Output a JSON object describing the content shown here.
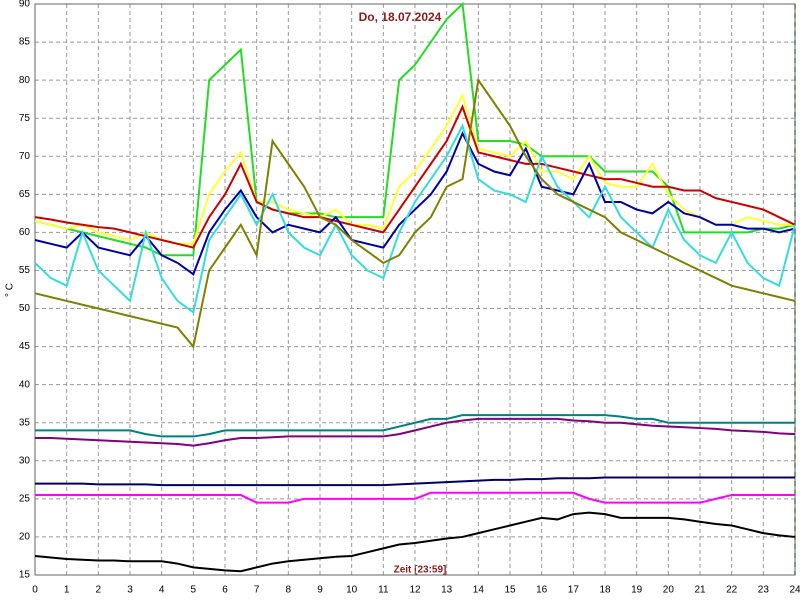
{
  "chart_data": {
    "type": "line",
    "title": "Do, 18.07.2024",
    "x_label": "Zeit [23:59]",
    "y_label": "° C",
    "x": [
      0,
      0.5,
      1,
      1.5,
      2,
      2.5,
      3,
      3.5,
      4,
      4.5,
      5,
      5.5,
      6,
      6.5,
      7,
      7.5,
      8,
      8.5,
      9,
      9.5,
      10,
      10.5,
      11,
      11.5,
      12,
      12.5,
      13,
      13.5,
      14,
      14.5,
      15,
      15.5,
      16,
      16.5,
      17,
      17.5,
      18,
      18.5,
      19,
      19.5,
      20,
      20.5,
      21,
      21.5,
      22,
      22.5,
      23,
      23.5,
      24
    ],
    "xlim": [
      0,
      24
    ],
    "xticks": [
      0,
      1,
      2,
      3,
      4,
      5,
      6,
      7,
      8,
      9,
      10,
      11,
      12,
      13,
      14,
      15,
      16,
      17,
      18,
      19,
      20,
      21,
      22,
      23,
      24
    ],
    "ylim": [
      15,
      90
    ],
    "yticks": [
      15,
      20,
      25,
      30,
      35,
      40,
      45,
      50,
      55,
      60,
      65,
      70,
      75,
      80,
      85,
      90
    ],
    "grid": true,
    "series": [
      {
        "color": "#22dd22",
        "values": [
          61.5,
          61,
          60.5,
          60,
          59.5,
          59,
          58.5,
          58,
          57,
          57,
          57,
          80,
          82,
          84,
          64,
          63,
          62.5,
          62.5,
          62.5,
          62,
          62,
          62,
          62,
          80,
          82,
          85,
          88,
          90,
          72,
          72,
          72,
          71.5,
          70,
          70,
          70,
          70,
          68,
          68,
          68,
          68,
          66,
          60,
          60,
          60,
          60,
          60,
          60.5,
          60.5,
          61
        ]
      },
      {
        "color": "#ffff33",
        "values": [
          61.5,
          61,
          60.5,
          61,
          60,
          59.5,
          59,
          60,
          59,
          58.5,
          58.5,
          65,
          68,
          70.5,
          64,
          64,
          63,
          62.5,
          62,
          63,
          61,
          61,
          60.5,
          66,
          68,
          71,
          74,
          78,
          71,
          70.5,
          70,
          72,
          68,
          68,
          67,
          70,
          66.5,
          66,
          66,
          69,
          65,
          63,
          62,
          61,
          61,
          62,
          61.5,
          61,
          61
        ]
      },
      {
        "color": "#cc0000",
        "values": [
          62,
          61.7,
          61.3,
          61,
          60.7,
          60.5,
          60,
          59.5,
          59,
          58.5,
          58,
          62,
          65,
          69,
          64,
          63,
          62.5,
          62,
          62,
          61.5,
          61,
          60.5,
          60,
          63,
          66,
          69,
          72,
          76.5,
          70.5,
          70,
          69.5,
          69,
          69,
          68.5,
          68,
          67.5,
          67,
          67,
          66.5,
          66,
          66,
          65.5,
          65.5,
          64.5,
          64,
          63.5,
          63,
          62,
          61
        ]
      },
      {
        "color": "#0000aa",
        "values": [
          59,
          58.5,
          58,
          60,
          58,
          57.5,
          57,
          59.5,
          57,
          56,
          54.5,
          60,
          63,
          65.5,
          62,
          60,
          61,
          60.5,
          60,
          62,
          59,
          58.5,
          58,
          61,
          63,
          65,
          68,
          73,
          69,
          68,
          67.5,
          71,
          66,
          65.5,
          65,
          69,
          64,
          64,
          63,
          62.5,
          64,
          62.5,
          62,
          61,
          61,
          60.5,
          60.5,
          60,
          60.5
        ]
      },
      {
        "color": "#33dddd",
        "values": [
          56,
          54,
          53,
          60,
          55,
          53,
          51,
          60,
          54,
          51,
          49.5,
          59,
          62,
          65,
          61,
          65,
          60,
          58,
          57,
          61,
          57,
          55,
          54,
          60,
          64,
          67,
          70,
          74,
          67,
          65.5,
          65,
          64,
          70,
          66,
          64,
          62,
          66,
          62,
          60,
          58,
          63,
          59,
          57,
          56,
          60,
          56,
          54,
          53,
          61
        ]
      },
      {
        "color": "#808000",
        "values": [
          52,
          51.5,
          51,
          50.5,
          50,
          49.5,
          49,
          48.5,
          48,
          47.5,
          45,
          55,
          58,
          61,
          57,
          72,
          69,
          66,
          62,
          61,
          59,
          57.5,
          56,
          57,
          60,
          62,
          66,
          67,
          80,
          77,
          74,
          70,
          67,
          65,
          64,
          63,
          62,
          60,
          59,
          58,
          57,
          56,
          55,
          54,
          53,
          52.5,
          52,
          51.5,
          51
        ]
      },
      {
        "color": "#008080",
        "values": [
          34,
          34,
          34,
          34,
          34,
          34,
          34,
          33.5,
          33.2,
          33.2,
          33.2,
          33.5,
          34,
          34,
          34,
          34,
          34,
          34,
          34,
          34,
          34,
          34,
          34,
          34.5,
          35,
          35.5,
          35.5,
          36,
          36,
          36,
          36,
          36,
          36,
          36,
          36,
          36,
          36,
          35.8,
          35.5,
          35.5,
          35,
          35,
          35,
          35,
          35,
          35,
          35,
          35,
          35
        ]
      },
      {
        "color": "#800080",
        "values": [
          33,
          33,
          32.9,
          32.8,
          32.7,
          32.6,
          32.5,
          32.4,
          32.3,
          32.2,
          32,
          32.3,
          32.7,
          33,
          33,
          33.1,
          33.2,
          33.2,
          33.2,
          33.2,
          33.2,
          33.2,
          33.2,
          33.5,
          34,
          34.5,
          35,
          35.3,
          35.5,
          35.5,
          35.5,
          35.5,
          35.5,
          35.5,
          35.3,
          35.2,
          35,
          35,
          34.8,
          34.6,
          34.5,
          34.4,
          34.3,
          34.2,
          34,
          33.9,
          33.8,
          33.6,
          33.5
        ]
      },
      {
        "color": "#000066",
        "values": [
          27,
          27,
          27,
          27,
          26.9,
          26.9,
          26.9,
          26.9,
          26.8,
          26.8,
          26.8,
          26.8,
          26.8,
          26.8,
          26.8,
          26.8,
          26.8,
          26.8,
          26.8,
          26.8,
          26.8,
          26.8,
          26.8,
          26.9,
          27,
          27.1,
          27.2,
          27.3,
          27.4,
          27.5,
          27.5,
          27.6,
          27.6,
          27.7,
          27.7,
          27.7,
          27.8,
          27.8,
          27.8,
          27.8,
          27.8,
          27.8,
          27.8,
          27.8,
          27.8,
          27.8,
          27.8,
          27.8,
          27.8
        ]
      },
      {
        "color": "#ff00ff",
        "values": [
          25.5,
          25.5,
          25.5,
          25.5,
          25.5,
          25.5,
          25.5,
          25.5,
          25.5,
          25.5,
          25.5,
          25.5,
          25.5,
          25.5,
          24.5,
          24.5,
          24.5,
          25,
          25,
          25,
          25,
          25,
          25,
          25,
          25,
          25.8,
          25.8,
          25.8,
          25.8,
          25.8,
          25.8,
          25.8,
          25.8,
          25.8,
          25.8,
          25,
          24.5,
          24.5,
          24.5,
          24.5,
          24.5,
          24.5,
          24.5,
          25,
          25.5,
          25.5,
          25.5,
          25.5,
          25.5
        ]
      },
      {
        "color": "#000000",
        "values": [
          17.5,
          17.3,
          17.1,
          17,
          16.9,
          16.9,
          16.8,
          16.8,
          16.8,
          16.5,
          16,
          15.8,
          15.6,
          15.5,
          16,
          16.5,
          16.8,
          17,
          17.2,
          17.4,
          17.5,
          18,
          18.5,
          19,
          19.2,
          19.5,
          19.8,
          20,
          20.5,
          21,
          21.5,
          22,
          22.5,
          22.3,
          23,
          23.2,
          23,
          22.5,
          22.5,
          22.5,
          22.5,
          22.3,
          22,
          21.7,
          21.5,
          21,
          20.5,
          20.2,
          20
        ]
      }
    ]
  }
}
